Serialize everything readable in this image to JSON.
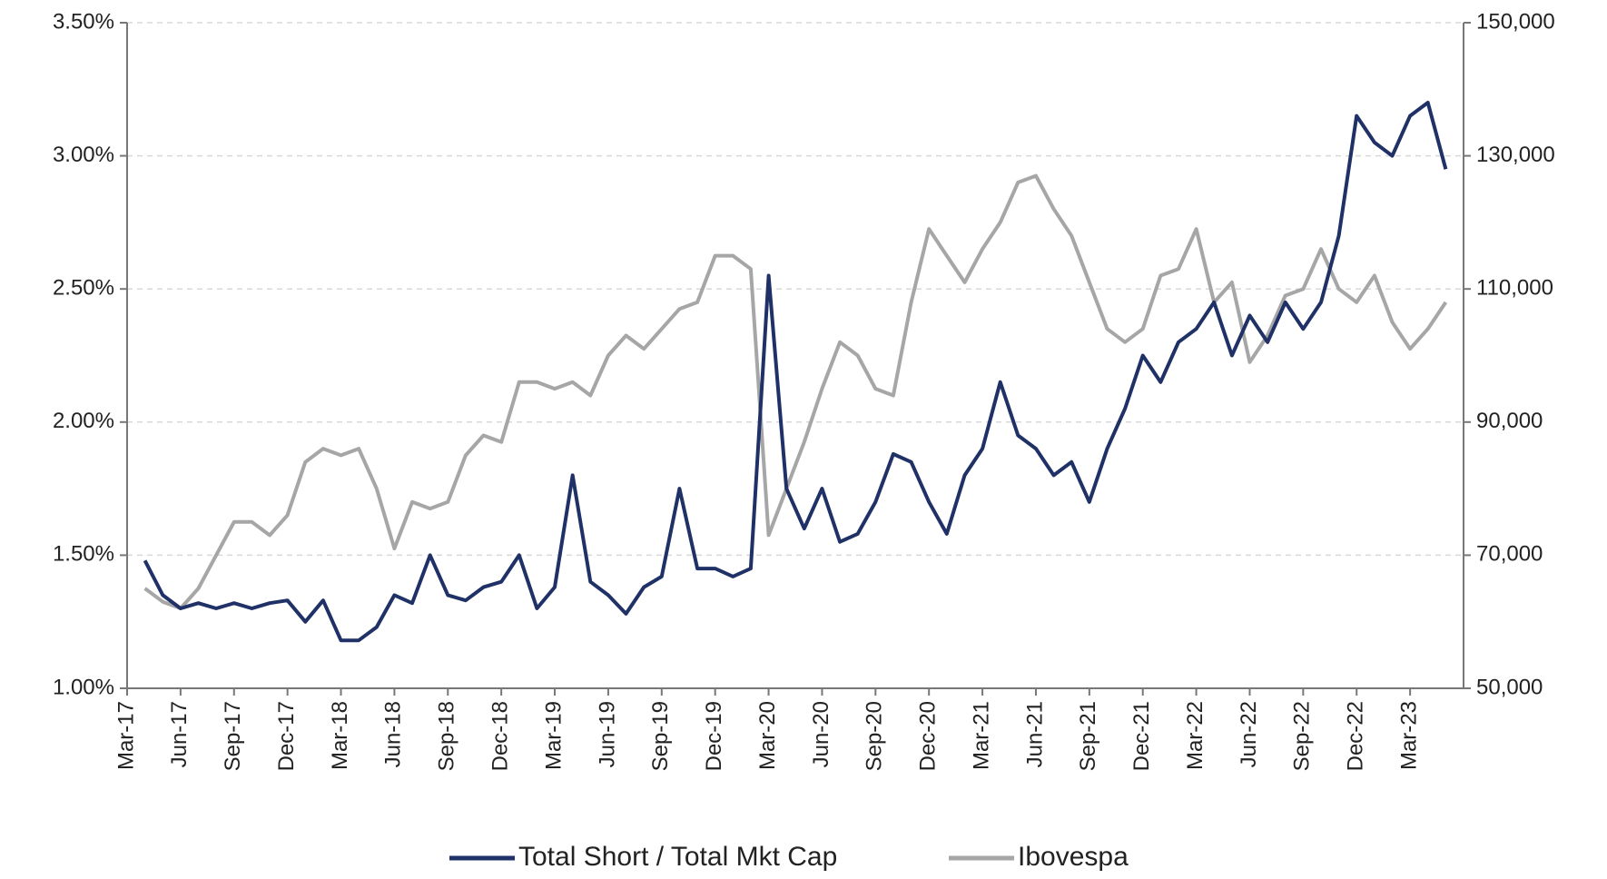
{
  "chart_data": {
    "type": "line",
    "x": [
      "2017-04",
      "2017-05",
      "2017-06",
      "2017-07",
      "2017-08",
      "2017-09",
      "2017-10",
      "2017-11",
      "2017-12",
      "2018-01",
      "2018-02",
      "2018-03",
      "2018-04",
      "2018-05",
      "2018-06",
      "2018-07",
      "2018-08",
      "2018-09",
      "2018-10",
      "2018-11",
      "2018-12",
      "2019-01",
      "2019-02",
      "2019-03",
      "2019-04",
      "2019-05",
      "2019-06",
      "2019-07",
      "2019-08",
      "2019-09",
      "2019-10",
      "2019-11",
      "2019-12",
      "2020-01",
      "2020-02",
      "2020-03",
      "2020-04",
      "2020-05",
      "2020-06",
      "2020-07",
      "2020-08",
      "2020-09",
      "2020-10",
      "2020-11",
      "2020-12",
      "2021-01",
      "2021-02",
      "2021-03",
      "2021-04",
      "2021-05",
      "2021-06",
      "2021-07",
      "2021-08",
      "2021-09",
      "2021-10",
      "2021-11",
      "2021-12",
      "2022-01",
      "2022-02",
      "2022-03",
      "2022-04",
      "2022-05",
      "2022-06",
      "2022-07",
      "2022-08",
      "2022-09",
      "2022-10",
      "2022-11",
      "2022-12",
      "2023-01",
      "2023-02",
      "2023-03",
      "2023-04",
      "2023-05"
    ],
    "series": [
      {
        "name": "Total Short / Total Mkt Cap",
        "color": "#1f3166",
        "axis": "y",
        "values": [
          1.48,
          1.35,
          1.3,
          1.32,
          1.3,
          1.32,
          1.3,
          1.32,
          1.33,
          1.25,
          1.33,
          1.18,
          1.18,
          1.23,
          1.35,
          1.32,
          1.5,
          1.35,
          1.33,
          1.38,
          1.4,
          1.5,
          1.3,
          1.38,
          1.8,
          1.4,
          1.35,
          1.28,
          1.38,
          1.42,
          1.75,
          1.45,
          1.45,
          1.42,
          1.45,
          2.55,
          1.75,
          1.6,
          1.75,
          1.55,
          1.58,
          1.7,
          1.88,
          1.85,
          1.7,
          1.58,
          1.8,
          1.9,
          2.15,
          1.95,
          1.9,
          1.8,
          1.85,
          1.7,
          1.9,
          2.05,
          2.25,
          2.15,
          2.3,
          2.35,
          2.45,
          2.25,
          2.4,
          2.3,
          2.45,
          2.35,
          2.45,
          2.7,
          3.15,
          3.05,
          3.0,
          3.15,
          3.2,
          2.95
        ]
      },
      {
        "name": "Ibovespa",
        "color": "#a6a6a6",
        "axis": "y2",
        "values": [
          65000,
          63000,
          62000,
          65000,
          70000,
          75000,
          75000,
          73000,
          76000,
          84000,
          86000,
          85000,
          86000,
          80000,
          71000,
          78000,
          77000,
          78000,
          85000,
          88000,
          87000,
          96000,
          96000,
          95000,
          96000,
          94000,
          100000,
          103000,
          101000,
          104000,
          107000,
          108000,
          115000,
          115000,
          113000,
          73000,
          80000,
          87000,
          95000,
          102000,
          100000,
          95000,
          94000,
          108000,
          119000,
          115000,
          111000,
          116000,
          120000,
          126000,
          127000,
          122000,
          118000,
          111000,
          104000,
          102000,
          104000,
          112000,
          113000,
          119000,
          108000,
          111000,
          99000,
          103000,
          109000,
          110000,
          116000,
          110000,
          108000,
          112000,
          105000,
          101000,
          104000,
          108000
        ]
      }
    ],
    "xlim": [
      "2017-03",
      "2023-06"
    ],
    "xticks": [
      {
        "value": "2017-03",
        "label": "Mar-17"
      },
      {
        "value": "2017-06",
        "label": "Jun-17"
      },
      {
        "value": "2017-09",
        "label": "Sep-17"
      },
      {
        "value": "2017-12",
        "label": "Dec-17"
      },
      {
        "value": "2018-03",
        "label": "Mar-18"
      },
      {
        "value": "2018-06",
        "label": "Jun-18"
      },
      {
        "value": "2018-09",
        "label": "Sep-18"
      },
      {
        "value": "2018-12",
        "label": "Dec-18"
      },
      {
        "value": "2019-03",
        "label": "Mar-19"
      },
      {
        "value": "2019-06",
        "label": "Jun-19"
      },
      {
        "value": "2019-09",
        "label": "Sep-19"
      },
      {
        "value": "2019-12",
        "label": "Dec-19"
      },
      {
        "value": "2020-03",
        "label": "Mar-20"
      },
      {
        "value": "2020-06",
        "label": "Jun-20"
      },
      {
        "value": "2020-09",
        "label": "Sep-20"
      },
      {
        "value": "2020-12",
        "label": "Dec-20"
      },
      {
        "value": "2021-03",
        "label": "Mar-21"
      },
      {
        "value": "2021-06",
        "label": "Jun-21"
      },
      {
        "value": "2021-09",
        "label": "Sep-21"
      },
      {
        "value": "2021-12",
        "label": "Dec-21"
      },
      {
        "value": "2022-03",
        "label": "Mar-22"
      },
      {
        "value": "2022-06",
        "label": "Jun-22"
      },
      {
        "value": "2022-09",
        "label": "Sep-22"
      },
      {
        "value": "2022-12",
        "label": "Dec-22"
      },
      {
        "value": "2023-03",
        "label": "Mar-23"
      }
    ],
    "ylim": [
      1,
      3.5
    ],
    "yticks": [
      {
        "value": 1,
        "label": "1.00%"
      },
      {
        "value": 1.5,
        "label": "1.50%"
      },
      {
        "value": 2,
        "label": "2.00%"
      },
      {
        "value": 2.5,
        "label": "2.50%"
      },
      {
        "value": 3,
        "label": "3.00%"
      },
      {
        "value": 3.5,
        "label": "3.50%"
      }
    ],
    "y2lim": [
      50000,
      150000
    ],
    "y2ticks": [
      {
        "value": 50000,
        "label": "50,000"
      },
      {
        "value": 70000,
        "label": "70,000"
      },
      {
        "value": 90000,
        "label": "90,000"
      },
      {
        "value": 110000,
        "label": "110,000"
      },
      {
        "value": 130000,
        "label": "130,000"
      },
      {
        "value": 150000,
        "label": "150,000"
      }
    ],
    "grid": true,
    "legend": "bottom"
  }
}
